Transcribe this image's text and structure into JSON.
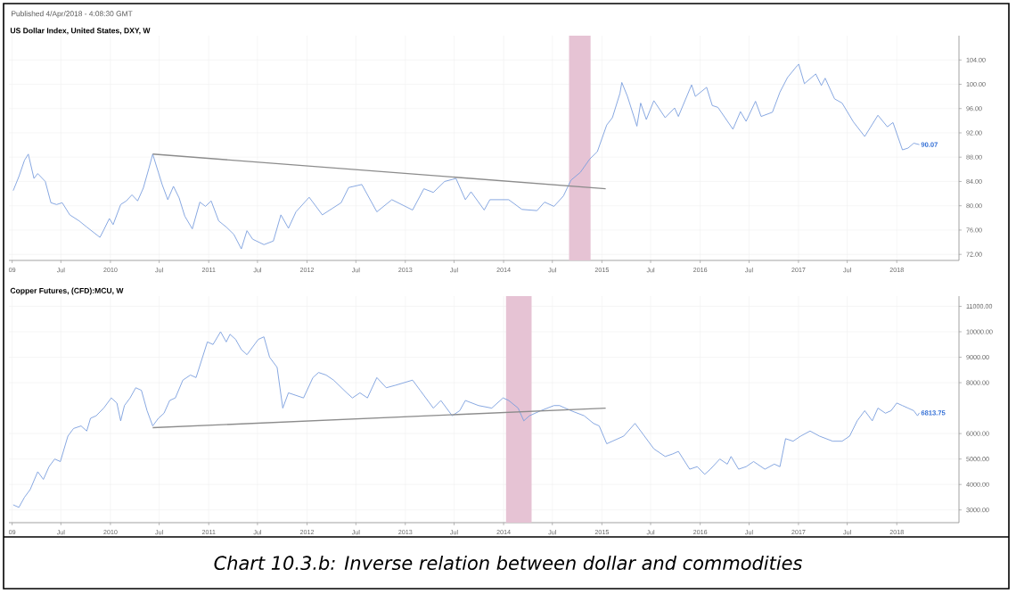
{
  "chart_data": [
    {
      "type": "line",
      "title": "US Dollar Index, United States, DXY, W",
      "annotations": [
        "Published 4/Apr/2018 - 4:08:30 GMT",
        {
          "text": "90.07",
          "x": "2018-03-26",
          "y": 90.07
        }
      ],
      "xlim": [
        "2008-12-20",
        "2018-08-20"
      ],
      "ylim": [
        71,
        108
      ],
      "xticks": [
        {
          "value": "2009-01-01",
          "label": "09"
        },
        {
          "value": "2009-07-01",
          "label": "Jul"
        },
        {
          "value": "2010-01-01",
          "label": "2010"
        },
        {
          "value": "2010-07-01",
          "label": "Jul"
        },
        {
          "value": "2011-01-01",
          "label": "2011"
        },
        {
          "value": "2011-07-01",
          "label": "Jul"
        },
        {
          "value": "2012-01-01",
          "label": "2012"
        },
        {
          "value": "2012-07-01",
          "label": "Jul"
        },
        {
          "value": "2013-01-01",
          "label": "2013"
        },
        {
          "value": "2013-07-01",
          "label": "Jul"
        },
        {
          "value": "2014-01-01",
          "label": "2014"
        },
        {
          "value": "2014-07-01",
          "label": "Jul"
        },
        {
          "value": "2015-01-01",
          "label": "2015"
        },
        {
          "value": "2015-07-01",
          "label": "Jul"
        },
        {
          "value": "2016-01-01",
          "label": "2016"
        },
        {
          "value": "2016-07-01",
          "label": "Jul"
        },
        {
          "value": "2017-01-01",
          "label": "2017"
        },
        {
          "value": "2017-07-01",
          "label": "Jul"
        },
        {
          "value": "2018-01-01",
          "label": "2018"
        }
      ],
      "yticks": [
        {
          "value": 72,
          "label": "72.00"
        },
        {
          "value": 76,
          "label": "76.00"
        },
        {
          "value": 80,
          "label": "80.00"
        },
        {
          "value": 84,
          "label": "84.00"
        },
        {
          "value": 88,
          "label": "88.00"
        },
        {
          "value": 92,
          "label": "92.00"
        },
        {
          "value": 96,
          "label": "96.00"
        },
        {
          "value": 100,
          "label": "100.00"
        },
        {
          "value": 104,
          "label": "104.00"
        }
      ],
      "grid": true,
      "bands": [
        {
          "axis": "x",
          "from": "2014-09-01",
          "to": "2014-11-20",
          "color": "#e6c3d4"
        }
      ],
      "series": [
        {
          "color": "#7b9ede",
          "x": [
            "2009-01-05",
            "2009-01-26",
            "2009-02-16",
            "2009-03-02",
            "2009-03-23",
            "2009-04-06",
            "2009-05-04",
            "2009-05-25",
            "2009-06-15",
            "2009-07-06",
            "2009-08-03",
            "2009-09-07",
            "2009-10-05",
            "2009-11-23",
            "2009-12-07",
            "2009-12-28",
            "2010-01-11",
            "2010-02-08",
            "2010-03-01",
            "2010-03-22",
            "2010-04-12",
            "2010-05-03",
            "2010-05-24",
            "2010-06-07",
            "2010-06-28",
            "2010-07-12",
            "2010-08-02",
            "2010-08-23",
            "2010-09-13",
            "2010-10-04",
            "2010-11-01",
            "2010-11-29",
            "2010-12-20",
            "2011-01-10",
            "2011-02-07",
            "2011-03-07",
            "2011-04-04",
            "2011-05-02",
            "2011-05-23",
            "2011-06-13",
            "2011-07-25",
            "2011-08-29",
            "2011-09-26",
            "2011-10-24",
            "2011-11-21",
            "2012-01-09",
            "2012-02-27",
            "2012-04-02",
            "2012-05-07",
            "2012-06-04",
            "2012-07-23",
            "2012-09-17",
            "2012-11-12",
            "2013-01-28",
            "2013-03-11",
            "2013-04-15",
            "2013-05-27",
            "2013-07-08",
            "2013-08-12",
            "2013-09-02",
            "2013-10-21",
            "2013-11-11",
            "2014-01-20",
            "2014-03-10",
            "2014-05-05",
            "2014-06-02",
            "2014-07-07",
            "2014-08-11",
            "2014-09-08",
            "2014-10-13",
            "2014-11-17",
            "2014-12-15",
            "2015-01-19",
            "2015-02-09",
            "2015-03-09",
            "2015-03-16",
            "2015-04-06",
            "2015-05-11",
            "2015-05-25",
            "2015-06-15",
            "2015-07-13",
            "2015-08-24",
            "2015-09-28",
            "2015-10-12",
            "2015-11-30",
            "2015-12-14",
            "2016-01-25",
            "2016-02-15",
            "2016-03-07",
            "2016-05-02",
            "2016-05-30",
            "2016-06-20",
            "2016-07-25",
            "2016-08-15",
            "2016-09-26",
            "2016-10-24",
            "2016-11-21",
            "2016-12-26",
            "2017-01-02",
            "2017-01-23",
            "2017-03-06",
            "2017-03-27",
            "2017-04-10",
            "2017-05-15",
            "2017-06-12",
            "2017-07-24",
            "2017-09-04",
            "2017-10-23",
            "2017-11-27",
            "2017-12-18",
            "2018-01-22",
            "2018-02-12",
            "2018-03-05",
            "2018-03-26"
          ],
          "values": [
            82.5,
            84.8,
            87.5,
            88.5,
            84.5,
            85.3,
            84.0,
            80.5,
            80.2,
            80.5,
            78.5,
            77.5,
            76.5,
            74.8,
            76.0,
            77.9,
            76.9,
            80.2,
            80.8,
            81.8,
            80.8,
            82.9,
            86.2,
            88.5,
            85.5,
            83.5,
            81.0,
            83.2,
            81.3,
            78.3,
            76.2,
            80.6,
            79.9,
            80.8,
            77.5,
            76.5,
            75.3,
            72.9,
            75.9,
            74.5,
            73.6,
            74.2,
            78.5,
            76.3,
            79.0,
            81.4,
            78.5,
            79.5,
            80.5,
            83.0,
            83.5,
            79.0,
            81.0,
            79.3,
            82.8,
            82.2,
            84.0,
            84.5,
            81.0,
            82.3,
            79.3,
            81.0,
            81.0,
            79.4,
            79.2,
            80.6,
            79.9,
            81.6,
            84.2,
            85.5,
            87.7,
            88.9,
            93.3,
            94.5,
            98.5,
            100.3,
            98.0,
            93.1,
            96.9,
            94.2,
            97.3,
            94.5,
            96.1,
            94.7,
            99.9,
            98.0,
            99.5,
            96.5,
            96.2,
            92.6,
            95.5,
            93.9,
            97.2,
            94.7,
            95.4,
            98.7,
            101.1,
            103.0,
            103.3,
            100.1,
            101.7,
            99.8,
            101.0,
            97.6,
            96.9,
            93.8,
            91.4,
            94.9,
            93.0,
            93.7,
            89.2,
            89.5,
            90.3,
            90.07
          ]
        },
        {
          "type": "line",
          "color": "#8c8c8c",
          "x": [
            "2010-06-07",
            "2015-01-15"
          ],
          "values": [
            88.5,
            82.8
          ]
        }
      ]
    },
    {
      "type": "line",
      "title": "Copper Futures, (CFD):MCU, W",
      "annotations": [
        "Chart 10.3.b: Inverse relation between dollar and commodities",
        {
          "text": "6813.75",
          "x": "2018-03-26",
          "y": 6813.75
        }
      ],
      "xlim": [
        "2008-12-20",
        "2018-08-20"
      ],
      "ylim": [
        2500,
        11400
      ],
      "xticks": [
        {
          "value": "2009-01-01",
          "label": "09"
        },
        {
          "value": "2009-07-01",
          "label": "Jul"
        },
        {
          "value": "2010-01-01",
          "label": "2010"
        },
        {
          "value": "2010-07-01",
          "label": "Jul"
        },
        {
          "value": "2011-01-01",
          "label": "2011"
        },
        {
          "value": "2011-07-01",
          "label": "Jul"
        },
        {
          "value": "2012-01-01",
          "label": "2012"
        },
        {
          "value": "2012-07-01",
          "label": "Jul"
        },
        {
          "value": "2013-01-01",
          "label": "2013"
        },
        {
          "value": "2013-07-01",
          "label": "Jul"
        },
        {
          "value": "2014-01-01",
          "label": "2014"
        },
        {
          "value": "2014-07-01",
          "label": "Jul"
        },
        {
          "value": "2015-01-01",
          "label": "2015"
        },
        {
          "value": "2015-07-01",
          "label": "Jul"
        },
        {
          "value": "2016-01-01",
          "label": "2016"
        },
        {
          "value": "2016-07-01",
          "label": "Jul"
        },
        {
          "value": "2017-01-01",
          "label": "2017"
        },
        {
          "value": "2017-07-01",
          "label": "Jul"
        },
        {
          "value": "2018-01-01",
          "label": "2018"
        }
      ],
      "yticks": [
        {
          "value": 3000,
          "label": "3000.00"
        },
        {
          "value": 4000,
          "label": "4000.00"
        },
        {
          "value": 5000,
          "label": "5000.00"
        },
        {
          "value": 6000,
          "label": "6000.00"
        },
        {
          "value": 8000,
          "label": "8000.00"
        },
        {
          "value": 9000,
          "label": "9000.00"
        },
        {
          "value": 10000,
          "label": "10000.00"
        },
        {
          "value": 11000,
          "label": "11000.00"
        }
      ],
      "grid": true,
      "bands": [
        {
          "axis": "x",
          "from": "2014-01-10",
          "to": "2014-04-15",
          "color": "#e6c3d4"
        }
      ],
      "series": [
        {
          "color": "#7b9ede",
          "x": [
            "2009-01-05",
            "2009-01-26",
            "2009-02-16",
            "2009-03-09",
            "2009-04-06",
            "2009-04-27",
            "2009-05-18",
            "2009-06-08",
            "2009-06-29",
            "2009-07-27",
            "2009-08-17",
            "2009-09-14",
            "2009-10-05",
            "2009-10-19",
            "2009-11-09",
            "2009-12-07",
            "2010-01-04",
            "2010-01-25",
            "2010-02-08",
            "2010-02-22",
            "2010-03-15",
            "2010-04-05",
            "2010-04-26",
            "2010-05-17",
            "2010-06-07",
            "2010-06-28",
            "2010-07-19",
            "2010-08-09",
            "2010-08-30",
            "2010-09-27",
            "2010-10-25",
            "2010-11-15",
            "2010-12-06",
            "2010-12-27",
            "2011-01-17",
            "2011-02-14",
            "2011-03-07",
            "2011-03-21",
            "2011-04-11",
            "2011-05-02",
            "2011-05-23",
            "2011-06-13",
            "2011-07-04",
            "2011-07-25",
            "2011-08-15",
            "2011-09-12",
            "2011-10-03",
            "2011-10-24",
            "2011-11-21",
            "2011-12-19",
            "2012-01-23",
            "2012-02-13",
            "2012-03-12",
            "2012-04-09",
            "2012-05-28",
            "2012-06-18",
            "2012-07-16",
            "2012-08-13",
            "2012-09-17",
            "2012-10-22",
            "2012-11-26",
            "2013-01-28",
            "2013-02-25",
            "2013-04-15",
            "2013-05-13",
            "2013-06-24",
            "2013-07-22",
            "2013-08-12",
            "2013-09-30",
            "2013-11-18",
            "2013-12-30",
            "2014-01-20",
            "2014-02-24",
            "2014-03-17",
            "2014-04-07",
            "2014-05-19",
            "2014-07-07",
            "2014-07-28",
            "2014-09-08",
            "2014-10-27",
            "2014-12-01",
            "2014-12-22",
            "2015-01-19",
            "2015-02-09",
            "2015-03-23",
            "2015-05-04",
            "2015-06-01",
            "2015-07-13",
            "2015-08-24",
            "2015-09-21",
            "2015-10-12",
            "2015-11-23",
            "2015-12-21",
            "2016-01-18",
            "2016-02-08",
            "2016-03-14",
            "2016-04-11",
            "2016-04-25",
            "2016-05-23",
            "2016-06-20",
            "2016-07-18",
            "2016-08-29",
            "2016-10-03",
            "2016-10-24",
            "2016-11-14",
            "2016-12-12",
            "2017-01-09",
            "2017-02-13",
            "2017-03-20",
            "2017-05-08",
            "2017-06-12",
            "2017-07-10",
            "2017-08-07",
            "2017-09-04",
            "2017-10-02",
            "2017-10-23",
            "2017-11-20",
            "2017-12-11",
            "2018-01-01",
            "2018-01-22",
            "2018-02-12",
            "2018-03-05",
            "2018-03-19",
            "2018-03-26"
          ],
          "values": [
            3200,
            3100,
            3500,
            3800,
            4500,
            4200,
            4700,
            5000,
            4900,
            5900,
            6200,
            6300,
            6100,
            6600,
            6700,
            7000,
            7400,
            7200,
            6500,
            7100,
            7400,
            7800,
            7700,
            6900,
            6300,
            6600,
            6800,
            7300,
            7400,
            8100,
            8300,
            8200,
            8900,
            9600,
            9500,
            10000,
            9600,
            9900,
            9700,
            9300,
            9100,
            9400,
            9700,
            9800,
            9000,
            8600,
            7000,
            7600,
            7500,
            7400,
            8200,
            8400,
            8300,
            8100,
            7600,
            7400,
            7600,
            7400,
            8200,
            7800,
            7900,
            8100,
            7700,
            7000,
            7300,
            6700,
            6900,
            7300,
            7100,
            7000,
            7400,
            7300,
            7000,
            6500,
            6700,
            6900,
            7100,
            7100,
            6900,
            6700,
            6400,
            6300,
            5600,
            5700,
            5900,
            6400,
            6000,
            5400,
            5100,
            5200,
            5300,
            4600,
            4700,
            4400,
            4600,
            5000,
            4800,
            5100,
            4600,
            4700,
            4900,
            4600,
            4800,
            4700,
            5800,
            5700,
            5900,
            6100,
            5900,
            5700,
            5700,
            5900,
            6500,
            6900,
            6500,
            7000,
            6800,
            6900,
            7200,
            7100,
            7000,
            6900,
            6700,
            6813.75
          ]
        },
        {
          "type": "line",
          "color": "#8c8c8c",
          "x": [
            "2010-06-07",
            "2015-01-15"
          ],
          "values": [
            6230,
            7000
          ]
        }
      ]
    }
  ]
}
